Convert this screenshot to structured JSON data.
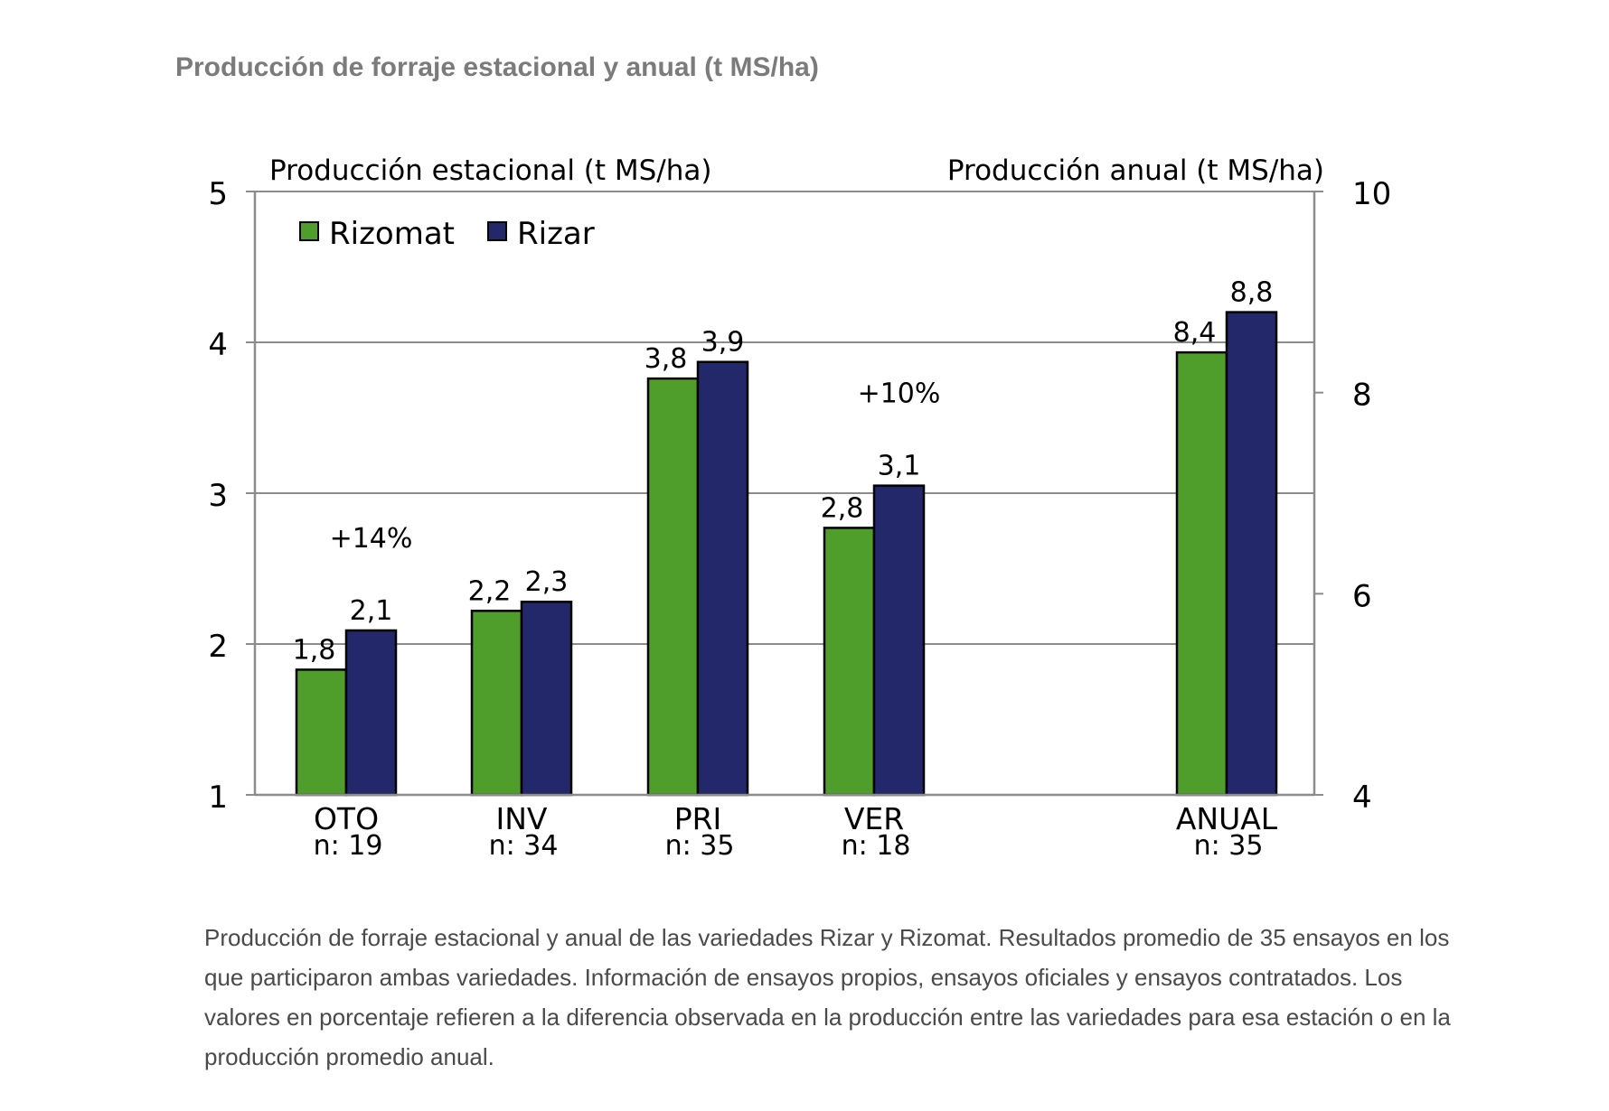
{
  "heading": "Producción de forraje estacional y anual (t MS/ha)",
  "caption": "Producción de forraje estacional y anual de las variedades Rizar y Rizomat. Resultados promedio de 35 ensayos en los que participaron ambas variedades. Información de ensayos propios, ensayos oficiales y ensayos contratados. Los valores en porcentaje refieren a la diferencia observada en la producción entre las variedades para esa estación o en la producción promedio anual.",
  "chart_data": {
    "type": "bar",
    "ylabel": "Producción estacional (t MS/ha)",
    "y2label": "Producción anual (t MS/ha)",
    "ylim": [
      1,
      5
    ],
    "y2lim": [
      4,
      10
    ],
    "yticks": [
      "1",
      "2",
      "3",
      "4",
      "5"
    ],
    "y2ticks": [
      "4",
      "6",
      "8",
      "10"
    ],
    "grid": true,
    "legend_position": "top-left",
    "categories": [
      "OTO",
      "INV",
      "PRI",
      "VER",
      "ANUAL"
    ],
    "sample_sizes": [
      "n: 19",
      "n: 34",
      "n: 35",
      "n: 18",
      "n: 35"
    ],
    "category_axis": [
      "left",
      "left",
      "left",
      "left",
      "right"
    ],
    "series": [
      {
        "name": "Rizomat",
        "color": "#4f9e2b",
        "values": [
          1.83,
          2.22,
          3.76,
          2.77,
          8.4
        ],
        "labels": [
          "1,8",
          "2,2",
          "3,8",
          "2,8",
          "8,4"
        ]
      },
      {
        "name": "Rizar",
        "color": "#22286a",
        "values": [
          2.09,
          2.28,
          3.87,
          3.05,
          8.8
        ],
        "labels": [
          "2,1",
          "2,3",
          "3,9",
          "3,1",
          "8,8"
        ]
      }
    ],
    "annotations": [
      {
        "category": "OTO",
        "text": "+14%"
      },
      {
        "category": "VER",
        "text": "+10%"
      }
    ]
  }
}
